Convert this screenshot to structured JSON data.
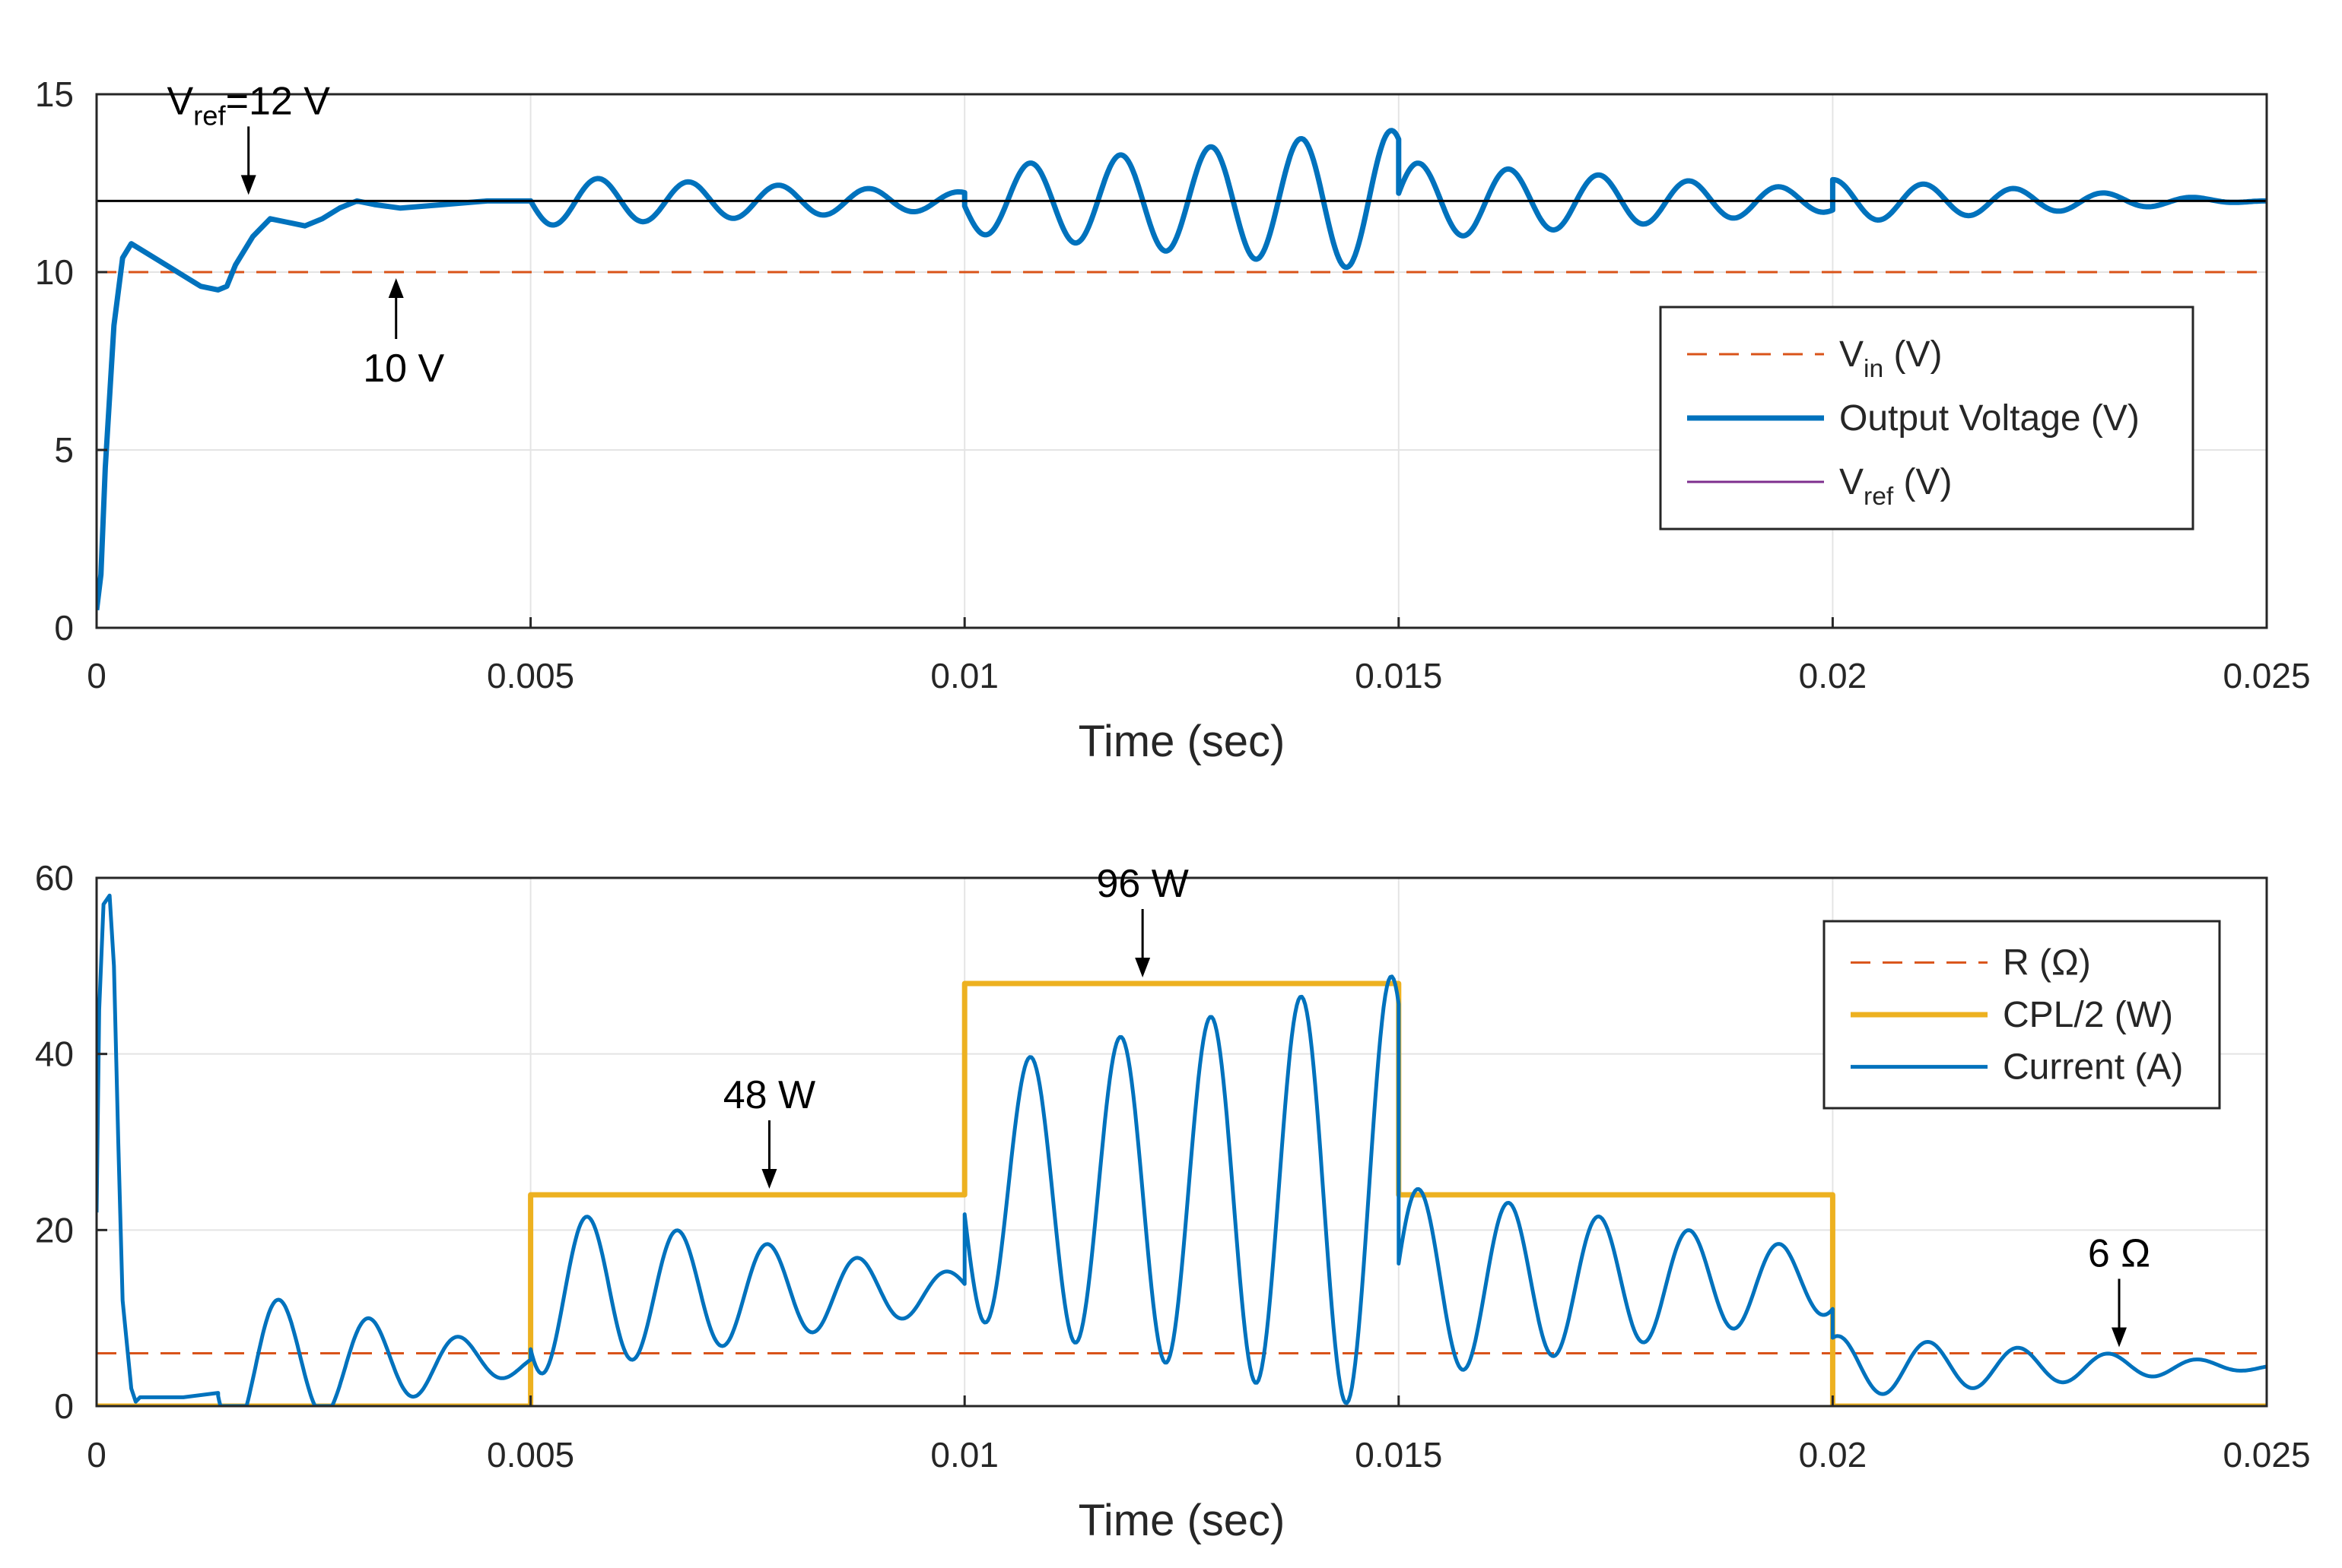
{
  "chart_data": [
    {
      "type": "line",
      "id": "top",
      "xlabel": "Time (sec)",
      "ylabel": "",
      "xlim": [
        0,
        0.025
      ],
      "ylim": [
        0,
        15
      ],
      "xticks": [
        0,
        0.005,
        0.01,
        0.015,
        0.02,
        0.025
      ],
      "xtick_labels": [
        "0",
        "0.005",
        "0.01",
        "0.015",
        "0.02",
        "0.025"
      ],
      "yticks": [
        0,
        5,
        10,
        15
      ],
      "ytick_labels": [
        "0",
        "5",
        "10",
        "15"
      ],
      "grid": true,
      "legend_position": "right",
      "series": [
        {
          "name": "Vin",
          "label_main": "V",
          "label_sub": "in",
          "label_tail": " (V)",
          "style": "dashed",
          "color": "#d95319",
          "width": 3,
          "x": [
            0,
            0.025
          ],
          "y": [
            10,
            10
          ]
        },
        {
          "name": "Output Voltage (V)",
          "label_main": "Output Voltage (V)",
          "label_sub": "",
          "label_tail": "",
          "style": "solid",
          "color": "#0072bd",
          "width": 7,
          "x": [
            0,
            5e-05,
            0.0001,
            0.0002,
            0.0003,
            0.0004,
            0.0006,
            0.0008,
            0.001,
            0.0012,
            0.0014,
            0.0015,
            0.0016,
            0.0018,
            0.002,
            0.0022,
            0.0024,
            0.0026,
            0.0028,
            0.003,
            0.0032,
            0.0035,
            0.004,
            0.0045,
            0.005
          ],
          "y": [
            0.5,
            1.5,
            4.5,
            8.5,
            10.4,
            10.8,
            10.5,
            10.2,
            9.9,
            9.6,
            9.5,
            9.6,
            10.2,
            11.0,
            11.5,
            11.4,
            11.3,
            11.5,
            11.8,
            12.0,
            11.9,
            11.8,
            11.9,
            12.0,
            12.0
          ]
        },
        {
          "name": "Vref",
          "label_main": "V",
          "label_sub": "ref",
          "label_tail": " (V)",
          "style": "solid",
          "color": "#000000",
          "width": 3,
          "legend_color": "#7e2f8e",
          "x": [
            0,
            0.025
          ],
          "y": [
            12,
            12
          ]
        }
      ],
      "oscillation_segments": [
        {
          "t0": 0.005,
          "t1": 0.01,
          "center": 12,
          "amp_start": 0.7,
          "amp_end": 0.25,
          "period": 0.00104,
          "phase": 3.14
        },
        {
          "t0": 0.01,
          "t1": 0.015,
          "center": 12,
          "amp_start": 0.9,
          "amp_end": 2.0,
          "period": 0.00104,
          "phase": 3.3
        },
        {
          "t0": 0.015,
          "t1": 0.02,
          "center": 12,
          "amp_start": 1.1,
          "amp_end": 0.3,
          "period": 0.00104,
          "phase": 0.2
        },
        {
          "t0": 0.02,
          "t1": 0.025,
          "center": 12,
          "amp_start": 0.6,
          "amp_end": 0.0,
          "period": 0.00104,
          "phase": 1.5
        }
      ],
      "annotations": [
        {
          "text_main": "V",
          "text_sub": "ref",
          "text_tail": "=12 V",
          "x": 0.00175,
          "y": 12,
          "direction": "down"
        },
        {
          "text_main": "10 V",
          "text_sub": "",
          "text_tail": "",
          "x": 0.00345,
          "y": 10,
          "direction": "up"
        }
      ]
    },
    {
      "type": "line",
      "id": "bottom",
      "xlabel": "Time (sec)",
      "ylabel": "",
      "xlim": [
        0,
        0.025
      ],
      "ylim": [
        0,
        60
      ],
      "xticks": [
        0,
        0.005,
        0.01,
        0.015,
        0.02,
        0.025
      ],
      "xtick_labels": [
        "0",
        "0.005",
        "0.01",
        "0.015",
        "0.02",
        "0.025"
      ],
      "yticks": [
        0,
        20,
        40,
        60
      ],
      "ytick_labels": [
        "0",
        "20",
        "40",
        "60"
      ],
      "grid": true,
      "legend_position": "top-right",
      "series": [
        {
          "name": "R (Ω)",
          "label_main": "R (Ω)",
          "style": "dashed",
          "color": "#d95319",
          "width": 3,
          "x": [
            0,
            0.025
          ],
          "y": [
            6,
            6
          ]
        },
        {
          "name": "CPL/2 (W)",
          "label_main": "CPL/2 (W)",
          "style": "solid",
          "color": "#edb120",
          "width": 7,
          "x": [
            0,
            0.005,
            0.005,
            0.01,
            0.01,
            0.015,
            0.015,
            0.02,
            0.02,
            0.025
          ],
          "y": [
            0,
            0,
            24,
            24,
            48,
            48,
            24,
            24,
            0,
            0
          ]
        },
        {
          "name": "Current (A)",
          "label_main": "Current (A)",
          "style": "solid",
          "color": "#0072bd",
          "width": 5,
          "x": [
            0,
            3e-05,
            8e-05,
            0.00015,
            0.0002,
            0.00025,
            0.0003,
            0.0004,
            0.00045,
            0.0005,
            0.001,
            0.0014
          ],
          "y": [
            22,
            45,
            57,
            58,
            50,
            30,
            12,
            2,
            0.5,
            1,
            1,
            1.5
          ]
        }
      ],
      "oscillation_segments": [
        {
          "t0": 0.0014,
          "t1": 0.005,
          "center": 5.0,
          "amp_start": 8.5,
          "amp_end": 1.2,
          "period": 0.00104,
          "phase": -2.67
        },
        {
          "t0": 0.005,
          "t1": 0.01,
          "center": 13.0,
          "amp_start": 9.5,
          "amp_end": 2.0,
          "period": 0.00104,
          "phase": 3.9
        },
        {
          "t0": 0.01,
          "t1": 0.015,
          "center": 24.0,
          "amp_start": 14.0,
          "amp_end": 25.0,
          "period": 0.00104,
          "phase": 3.3
        },
        {
          "t0": 0.015,
          "t1": 0.02,
          "center": 14.0,
          "amp_start": 11.0,
          "amp_end": 3.5,
          "period": 0.00104,
          "phase": 0.2
        },
        {
          "t0": 0.02,
          "t1": 0.025,
          "center": 4.5,
          "amp_start": 3.5,
          "amp_end": 0.3,
          "period": 0.00104,
          "phase": 1.2
        }
      ],
      "annotations": [
        {
          "text_main": "48 W",
          "x": 0.00775,
          "y": 24,
          "direction": "down"
        },
        {
          "text_main": "96 W",
          "x": 0.01205,
          "y": 48,
          "direction": "down"
        },
        {
          "text_main": "6 Ω",
          "x": 0.0233,
          "y": 6,
          "direction": "down"
        }
      ]
    }
  ]
}
